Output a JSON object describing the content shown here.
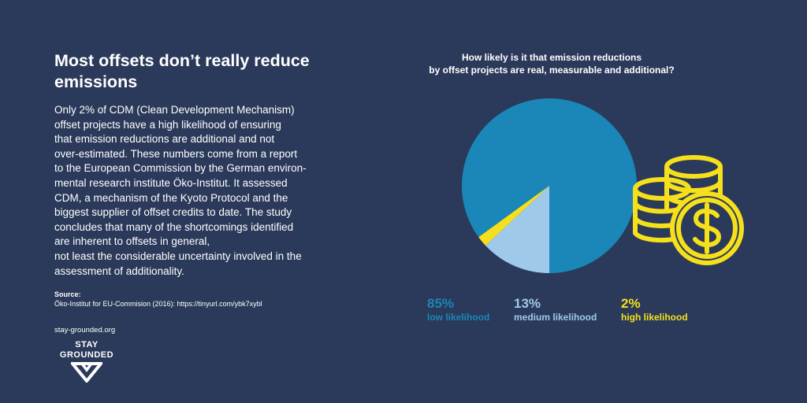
{
  "text": {
    "title": "Most offsets don’t really reduce emissions",
    "body": "Only 2% of CDM (Clean Development Mechanism)\noffset projects have a high likelihood of ensuring\nthat emission reductions are additional and not\nover-estimated. These numbers come from a report\nto the European Commission by the German environ-\nmental research institute Öko-Institut. It assessed\nCDM, a mechanism of the Kyoto Protocol and the\nbiggest supplier of offset credits to date. The study\nconcludes that many of the shortcomings identified\nare inherent to offsets in general,\nnot least the considerable uncertainty involved in the\nassessment of additionality.",
    "source_label": "Source:",
    "source_text": "Öko-Institut for EU-Commision (2016): https://tinyurl.com/ybk7xybl",
    "website": "stay-grounded.org",
    "logo_line1": "STAY",
    "logo_line2": "GROUNDED"
  },
  "chart_data": {
    "type": "pie",
    "title": "How likely is it that emission reductions by offset projects are real, measurable and additional?",
    "title_lines": [
      "How likely is it that emission reductions",
      "by offset projects are real, measurable and additional?"
    ],
    "slices": [
      {
        "label": "low likelihood",
        "value": 85,
        "display": "85%",
        "color": "#1a87b8"
      },
      {
        "label": "medium likelihood",
        "value": 13,
        "display": "13%",
        "color": "#9ec9ea"
      },
      {
        "label": "high likelihood",
        "value": 2,
        "display": "2%",
        "color": "#f5e01b"
      }
    ],
    "legend_placement": "bottom"
  },
  "colors": {
    "background": "#2b3a5a",
    "accent_yellow": "#f5e01b"
  },
  "icons": {
    "decoration": "coin-stacks-dollar-icon",
    "logo": "stay-grounded-chevron-logo"
  }
}
